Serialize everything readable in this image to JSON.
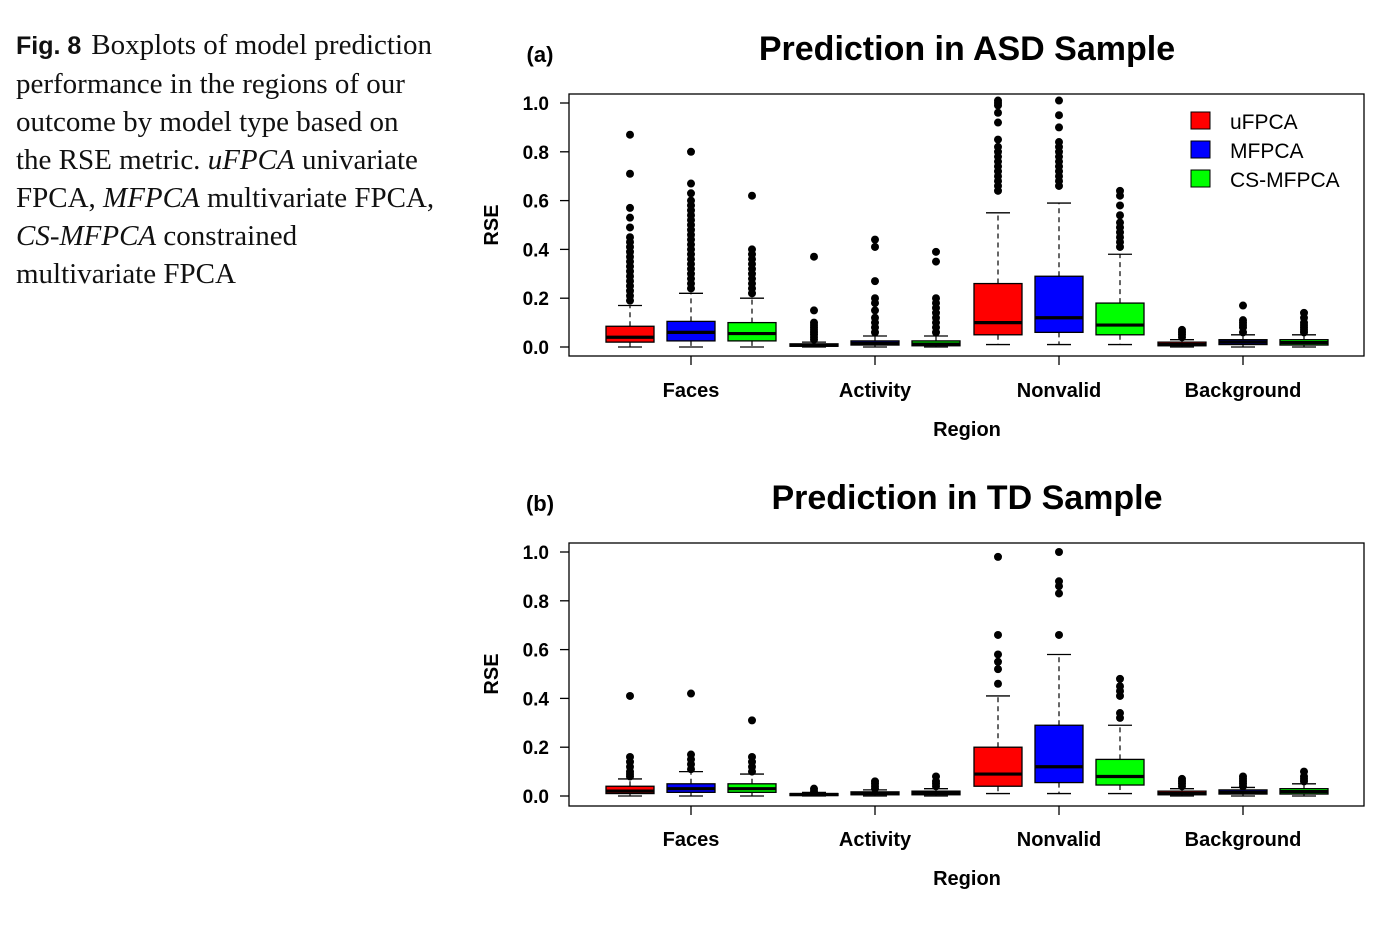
{
  "caption": {
    "fig_label": "Fig. 8",
    "segments": [
      {
        "text": "Boxplots of model prediction performance in the regions of our outcome by model type based on the RSE metric. ",
        "italic": false
      },
      {
        "text": "uFPCA",
        "italic": true
      },
      {
        "text": " univariate FPCA, ",
        "italic": false
      },
      {
        "text": "MFPCA",
        "italic": true
      },
      {
        "text": " multivariate FPCA, ",
        "italic": false
      },
      {
        "text": "CS-MFPCA",
        "italic": true
      },
      {
        "text": " constrained multivariate FPCA",
        "italic": false
      }
    ]
  },
  "colors": {
    "uFPCA": "#ff0000",
    "MFPCA": "#0000ff",
    "CS-MFPCA": "#00ff00"
  },
  "chart_data": [
    {
      "type": "boxplot",
      "panel_label": "(a)",
      "title": "Prediction in ASD Sample",
      "xlabel": "Region",
      "ylabel": "RSE",
      "ylim": [
        0,
        1.0
      ],
      "yticks": [
        "0.0",
        "0.2",
        "0.4",
        "0.6",
        "0.8",
        "1.0"
      ],
      "categories": [
        "Faces",
        "Activity",
        "Nonvalid",
        "Background"
      ],
      "legend": {
        "position": "top-right",
        "entries": [
          "uFPCA",
          "MFPCA",
          "CS-MFPCA"
        ]
      },
      "series": [
        {
          "name": "uFPCA",
          "boxes": [
            {
              "whisker_low": 0.0,
              "q1": 0.02,
              "median": 0.04,
              "q3": 0.085,
              "whisker_high": 0.17,
              "outliers": [
                0.19,
                0.21,
                0.23,
                0.25,
                0.27,
                0.29,
                0.31,
                0.33,
                0.35,
                0.37,
                0.39,
                0.41,
                0.43,
                0.45,
                0.49,
                0.53,
                0.57,
                0.71,
                0.87
              ]
            },
            {
              "whisker_low": 0.0,
              "q1": 0.003,
              "median": 0.007,
              "q3": 0.013,
              "whisker_high": 0.02,
              "outliers": [
                0.03,
                0.04,
                0.05,
                0.06,
                0.07,
                0.08,
                0.09,
                0.1,
                0.15,
                0.37
              ]
            },
            {
              "whisker_low": 0.01,
              "q1": 0.05,
              "median": 0.1,
              "q3": 0.26,
              "whisker_high": 0.55,
              "outliers": [
                0.64,
                0.66,
                0.68,
                0.7,
                0.72,
                0.74,
                0.76,
                0.78,
                0.8,
                0.82,
                0.85,
                0.92,
                0.96,
                0.99,
                1.0,
                1.01
              ]
            },
            {
              "whisker_low": 0.0,
              "q1": 0.005,
              "median": 0.01,
              "q3": 0.02,
              "whisker_high": 0.03,
              "outliers": [
                0.04,
                0.05,
                0.06,
                0.07
              ]
            }
          ]
        },
        {
          "name": "MFPCA",
          "boxes": [
            {
              "whisker_low": 0.0,
              "q1": 0.025,
              "median": 0.06,
              "q3": 0.105,
              "whisker_high": 0.22,
              "outliers": [
                0.24,
                0.26,
                0.28,
                0.3,
                0.32,
                0.34,
                0.36,
                0.38,
                0.4,
                0.42,
                0.44,
                0.46,
                0.48,
                0.5,
                0.52,
                0.54,
                0.56,
                0.58,
                0.6,
                0.63,
                0.67,
                0.8
              ]
            },
            {
              "whisker_low": 0.0,
              "q1": 0.008,
              "median": 0.015,
              "q3": 0.025,
              "whisker_high": 0.045,
              "outliers": [
                0.06,
                0.08,
                0.1,
                0.12,
                0.15,
                0.18,
                0.2,
                0.27,
                0.41,
                0.44
              ]
            },
            {
              "whisker_low": 0.01,
              "q1": 0.06,
              "median": 0.12,
              "q3": 0.29,
              "whisker_high": 0.59,
              "outliers": [
                0.66,
                0.68,
                0.7,
                0.72,
                0.74,
                0.76,
                0.78,
                0.8,
                0.82,
                0.84,
                0.9,
                0.95,
                1.01
              ]
            },
            {
              "whisker_low": 0.0,
              "q1": 0.01,
              "median": 0.02,
              "q3": 0.03,
              "whisker_high": 0.05,
              "outliers": [
                0.06,
                0.08,
                0.09,
                0.1,
                0.11,
                0.17
              ]
            }
          ]
        },
        {
          "name": "CS-MFPCA",
          "boxes": [
            {
              "whisker_low": 0.0,
              "q1": 0.025,
              "median": 0.055,
              "q3": 0.1,
              "whisker_high": 0.2,
              "outliers": [
                0.22,
                0.24,
                0.26,
                0.28,
                0.3,
                0.32,
                0.34,
                0.36,
                0.38,
                0.4,
                0.62
              ]
            },
            {
              "whisker_low": 0.0,
              "q1": 0.005,
              "median": 0.012,
              "q3": 0.025,
              "whisker_high": 0.045,
              "outliers": [
                0.06,
                0.08,
                0.1,
                0.12,
                0.14,
                0.16,
                0.18,
                0.2,
                0.35,
                0.39
              ]
            },
            {
              "whisker_low": 0.01,
              "q1": 0.05,
              "median": 0.09,
              "q3": 0.18,
              "whisker_high": 0.38,
              "outliers": [
                0.41,
                0.43,
                0.45,
                0.47,
                0.49,
                0.51,
                0.54,
                0.58,
                0.62,
                0.64
              ]
            },
            {
              "whisker_low": 0.0,
              "q1": 0.008,
              "median": 0.018,
              "q3": 0.03,
              "whisker_high": 0.05,
              "outliers": [
                0.06,
                0.07,
                0.08,
                0.09,
                0.1,
                0.12,
                0.14
              ]
            }
          ]
        }
      ]
    },
    {
      "type": "boxplot",
      "panel_label": "(b)",
      "title": "Prediction in TD Sample",
      "xlabel": "Region",
      "ylabel": "RSE",
      "ylim": [
        0,
        1.0
      ],
      "yticks": [
        "0.0",
        "0.2",
        "0.4",
        "0.6",
        "0.8",
        "1.0"
      ],
      "categories": [
        "Faces",
        "Activity",
        "Nonvalid",
        "Background"
      ],
      "series": [
        {
          "name": "uFPCA",
          "boxes": [
            {
              "whisker_low": 0.0,
              "q1": 0.01,
              "median": 0.02,
              "q3": 0.04,
              "whisker_high": 0.07,
              "outliers": [
                0.08,
                0.09,
                0.1,
                0.12,
                0.14,
                0.16,
                0.41
              ]
            },
            {
              "whisker_low": 0.0,
              "q1": 0.003,
              "median": 0.006,
              "q3": 0.01,
              "whisker_high": 0.015,
              "outliers": [
                0.02,
                0.03
              ]
            },
            {
              "whisker_low": 0.01,
              "q1": 0.04,
              "median": 0.09,
              "q3": 0.2,
              "whisker_high": 0.41,
              "outliers": [
                0.46,
                0.52,
                0.55,
                0.58,
                0.66,
                0.98
              ]
            },
            {
              "whisker_low": 0.0,
              "q1": 0.005,
              "median": 0.01,
              "q3": 0.02,
              "whisker_high": 0.03,
              "outliers": [
                0.04,
                0.05,
                0.06,
                0.07
              ]
            }
          ]
        },
        {
          "name": "MFPCA",
          "boxes": [
            {
              "whisker_low": 0.0,
              "q1": 0.015,
              "median": 0.03,
              "q3": 0.05,
              "whisker_high": 0.1,
              "outliers": [
                0.11,
                0.13,
                0.15,
                0.17,
                0.42
              ]
            },
            {
              "whisker_low": 0.0,
              "q1": 0.005,
              "median": 0.01,
              "q3": 0.017,
              "whisker_high": 0.025,
              "outliers": [
                0.03,
                0.04,
                0.05,
                0.06
              ]
            },
            {
              "whisker_low": 0.01,
              "q1": 0.055,
              "median": 0.12,
              "q3": 0.29,
              "whisker_high": 0.58,
              "outliers": [
                0.66,
                0.83,
                0.86,
                0.88,
                1.0
              ]
            },
            {
              "whisker_low": 0.0,
              "q1": 0.008,
              "median": 0.015,
              "q3": 0.025,
              "whisker_high": 0.035,
              "outliers": [
                0.04,
                0.05,
                0.06,
                0.07,
                0.08
              ]
            }
          ]
        },
        {
          "name": "CS-MFPCA",
          "boxes": [
            {
              "whisker_low": 0.0,
              "q1": 0.015,
              "median": 0.03,
              "q3": 0.05,
              "whisker_high": 0.09,
              "outliers": [
                0.1,
                0.12,
                0.14,
                0.16,
                0.31
              ]
            },
            {
              "whisker_low": 0.0,
              "q1": 0.005,
              "median": 0.012,
              "q3": 0.02,
              "whisker_high": 0.03,
              "outliers": [
                0.04,
                0.05,
                0.06,
                0.08
              ]
            },
            {
              "whisker_low": 0.01,
              "q1": 0.045,
              "median": 0.08,
              "q3": 0.15,
              "whisker_high": 0.29,
              "outliers": [
                0.32,
                0.34,
                0.41,
                0.43,
                0.45,
                0.48
              ]
            },
            {
              "whisker_low": 0.0,
              "q1": 0.008,
              "median": 0.018,
              "q3": 0.03,
              "whisker_high": 0.05,
              "outliers": [
                0.06,
                0.07,
                0.08,
                0.1
              ]
            }
          ]
        }
      ]
    }
  ]
}
